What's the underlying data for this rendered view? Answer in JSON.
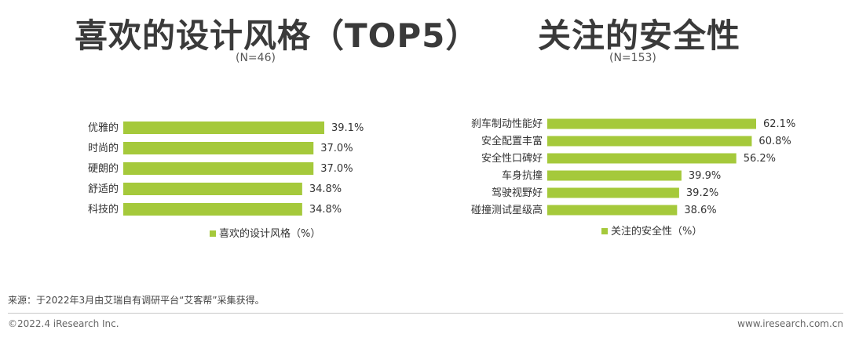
{
  "chart_data": [
    {
      "type": "bar",
      "orientation": "horizontal",
      "title": "喜欢的设计风格（TOP5）",
      "subtitle": "(N=46)",
      "categories": [
        "优雅的",
        "时尚的",
        "硬朗的",
        "舒适的",
        "科技的"
      ],
      "series": [
        {
          "name": "喜欢的设计风格（%）",
          "values": [
            39.1,
            37.0,
            37.0,
            34.8,
            34.8
          ]
        }
      ],
      "data_labels": [
        "39.1%",
        "37.0%",
        "37.0%",
        "34.8%",
        "34.8%"
      ],
      "xlim": [
        0,
        100
      ],
      "legend": "bottom",
      "grid": false,
      "bar_color": "#a5c93b"
    },
    {
      "type": "bar",
      "orientation": "horizontal",
      "title": "关注的安全性",
      "subtitle": "(N=153)",
      "categories": [
        "刹车制动性能好",
        "安全配置丰富",
        "安全性口碑好",
        "车身抗撞",
        "驾驶视野好",
        "碰撞测试星级高"
      ],
      "series": [
        {
          "name": "关注的安全性（%）",
          "values": [
            62.1,
            60.8,
            56.2,
            39.9,
            39.2,
            38.6
          ]
        }
      ],
      "data_labels": [
        "62.1%",
        "60.8%",
        "56.2%",
        "39.9%",
        "39.2%",
        "38.6%"
      ],
      "xlim": [
        0,
        100
      ],
      "legend": "bottom",
      "grid": false,
      "bar_color": "#a5c93b"
    }
  ],
  "footer": {
    "source": "来源：于2022年3月由艾瑞自有调研平台“艾客帮”采集获得。",
    "copyright": "©2022.4 iResearch Inc.",
    "url": "www.iresearch.com.cn"
  }
}
